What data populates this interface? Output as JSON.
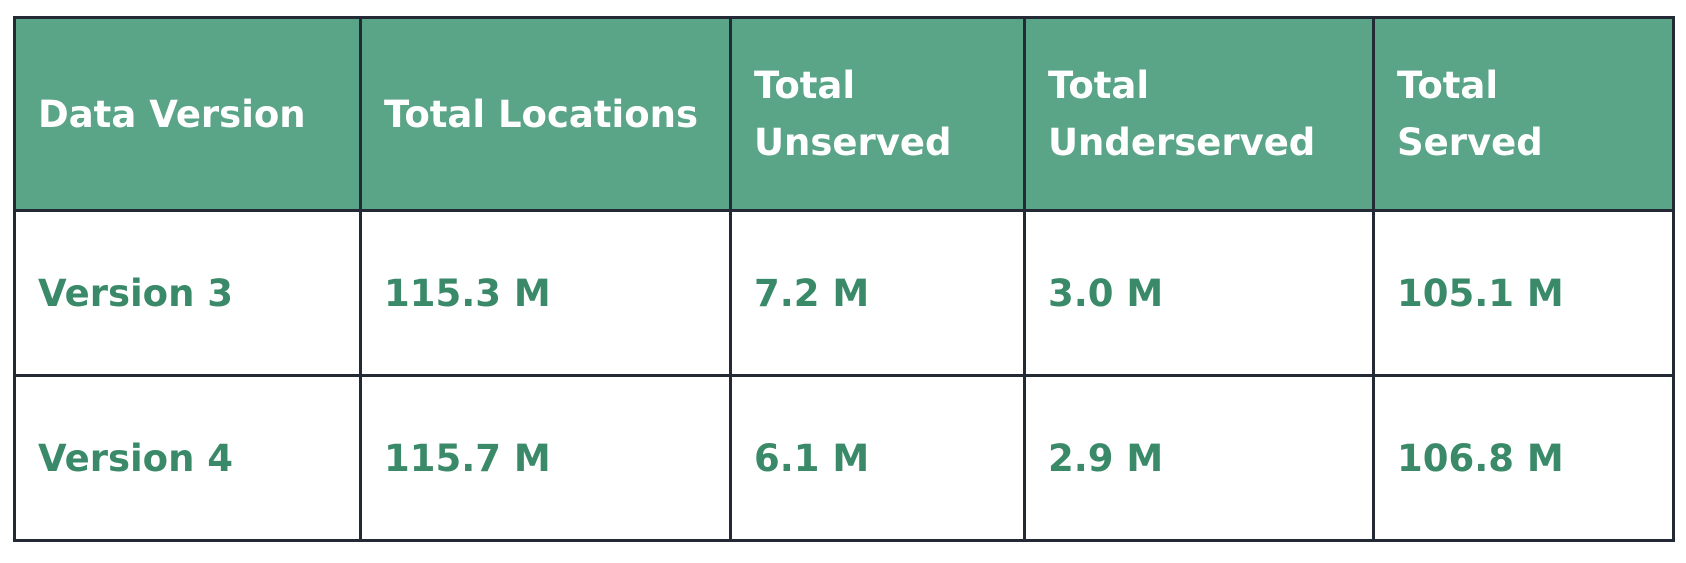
{
  "table": {
    "header": [
      "Data Version",
      "Total Locations",
      "Total Unserved",
      "Total Underserved",
      "Total Served"
    ],
    "rows": [
      [
        "Version 3",
        "115.3 M",
        "7.2 M",
        "3.0 M",
        "105.1 M"
      ],
      [
        "Version 4",
        "115.7 M",
        "6.1 M",
        "2.9 M",
        "106.8 M"
      ]
    ]
  }
}
